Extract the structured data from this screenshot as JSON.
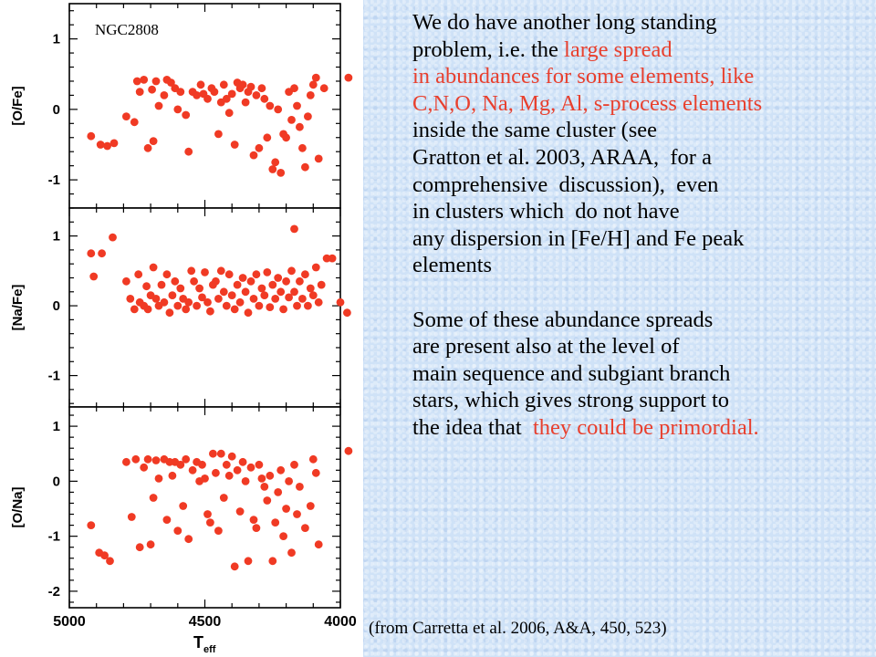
{
  "colors": {
    "marker": "#f03a24",
    "highlight": "#e8402e",
    "background": "#cfe2f7"
  },
  "text_block": {
    "lines": [
      [
        {
          "t": "We do have another long standing",
          "hl": false
        }
      ],
      [
        {
          "t": "problem, i.e. the ",
          "hl": false
        },
        {
          "t": "large spread",
          "hl": true
        }
      ],
      [
        {
          "t": "in abundances for some elements, like",
          "hl": true
        }
      ],
      [
        {
          "t": "C,N,O, Na, Mg, Al, s-process elements",
          "hl": true
        }
      ],
      [
        {
          "t": "inside the same cluster (see",
          "hl": false
        }
      ],
      [
        {
          "t": "Gratton et al. 2003, ARAA,  for a",
          "hl": false
        }
      ],
      [
        {
          "t": "comprehensive  discussion),  even",
          "hl": false
        }
      ],
      [
        {
          "t": "in clusters which  do not have",
          "hl": false
        }
      ],
      [
        {
          "t": "any dispersion in [Fe/H] and Fe peak",
          "hl": false
        }
      ],
      [
        {
          "t": "elements",
          "hl": false
        }
      ],
      [
        {
          "t": "",
          "hl": false
        }
      ],
      [
        {
          "t": "Some of these abundance spreads",
          "hl": false
        }
      ],
      [
        {
          "t": "are present also at the level of",
          "hl": false
        }
      ],
      [
        {
          "t": "main sequence and subgiant branch",
          "hl": false
        }
      ],
      [
        {
          "t": "stars, which gives strong support to",
          "hl": false
        }
      ],
      [
        {
          "t": "the idea that  ",
          "hl": false
        },
        {
          "t": "they could be primordial.",
          "hl": true
        }
      ]
    ]
  },
  "citation": "(from Carretta et al. 2006, A&A, 450, 523)",
  "chart_data": [
    {
      "type": "scatter",
      "annotation": "NGC2808",
      "xlabel": "",
      "ylabel": "[O/Fe]",
      "xlim": [
        5000,
        4000
      ],
      "ylim": [
        -1.4,
        1.5
      ],
      "yticks": [
        1,
        0,
        -1
      ],
      "points": [
        [
          4920,
          -0.38
        ],
        [
          4885,
          -0.5
        ],
        [
          4860,
          -0.52
        ],
        [
          4835,
          -0.48
        ],
        [
          4790,
          -0.1
        ],
        [
          4760,
          -0.18
        ],
        [
          4750,
          0.4
        ],
        [
          4740,
          0.25
        ],
        [
          4725,
          0.42
        ],
        [
          4710,
          -0.55
        ],
        [
          4695,
          0.28
        ],
        [
          4690,
          -0.45
        ],
        [
          4680,
          0.4
        ],
        [
          4670,
          0.05
        ],
        [
          4650,
          0.2
        ],
        [
          4640,
          0.42
        ],
        [
          4625,
          0.38
        ],
        [
          4610,
          0.3
        ],
        [
          4600,
          0.0
        ],
        [
          4590,
          0.25
        ],
        [
          4570,
          -0.08
        ],
        [
          4560,
          -0.6
        ],
        [
          4545,
          0.25
        ],
        [
          4530,
          0.2
        ],
        [
          4515,
          0.35
        ],
        [
          4505,
          0.22
        ],
        [
          4490,
          0.15
        ],
        [
          4475,
          0.3
        ],
        [
          4465,
          0.25
        ],
        [
          4450,
          -0.35
        ],
        [
          4440,
          0.1
        ],
        [
          4430,
          0.35
        ],
        [
          4420,
          0.15
        ],
        [
          4410,
          -0.05
        ],
        [
          4400,
          0.22
        ],
        [
          4390,
          -0.5
        ],
        [
          4380,
          0.38
        ],
        [
          4370,
          0.3
        ],
        [
          4360,
          0.35
        ],
        [
          4350,
          0.1
        ],
        [
          4340,
          0.25
        ],
        [
          4330,
          0.32
        ],
        [
          4320,
          -0.65
        ],
        [
          4310,
          0.2
        ],
        [
          4300,
          -0.55
        ],
        [
          4290,
          0.3
        ],
        [
          4280,
          0.15
        ],
        [
          4270,
          -0.4
        ],
        [
          4260,
          0.05
        ],
        [
          4250,
          -0.85
        ],
        [
          4240,
          -0.75
        ],
        [
          4230,
          0.0
        ],
        [
          4220,
          -0.9
        ],
        [
          4210,
          -0.35
        ],
        [
          4200,
          -0.4
        ],
        [
          4190,
          0.25
        ],
        [
          4180,
          -0.15
        ],
        [
          4170,
          0.3
        ],
        [
          4160,
          0.05
        ],
        [
          4150,
          -0.25
        ],
        [
          4140,
          -0.55
        ],
        [
          4130,
          -0.82
        ],
        [
          4120,
          -0.1
        ],
        [
          4110,
          0.2
        ],
        [
          4100,
          0.35
        ],
        [
          4090,
          0.45
        ],
        [
          4080,
          -0.7
        ],
        [
          4060,
          0.3
        ],
        [
          3970,
          0.45
        ]
      ]
    },
    {
      "type": "scatter",
      "xlabel": "",
      "ylabel": "[Na/Fe]",
      "xlim": [
        5000,
        4000
      ],
      "ylim": [
        -1.45,
        1.4
      ],
      "yticks": [
        1,
        0,
        -1
      ],
      "points": [
        [
          4920,
          0.75
        ],
        [
          4910,
          0.42
        ],
        [
          4880,
          0.75
        ],
        [
          4840,
          0.98
        ],
        [
          4790,
          0.35
        ],
        [
          4775,
          0.1
        ],
        [
          4760,
          -0.05
        ],
        [
          4745,
          0.45
        ],
        [
          4740,
          0.05
        ],
        [
          4725,
          0.0
        ],
        [
          4715,
          0.28
        ],
        [
          4710,
          -0.05
        ],
        [
          4700,
          0.15
        ],
        [
          4690,
          0.55
        ],
        [
          4680,
          0.1
        ],
        [
          4670,
          0.0
        ],
        [
          4660,
          0.3
        ],
        [
          4650,
          0.05
        ],
        [
          4640,
          0.45
        ],
        [
          4630,
          -0.1
        ],
        [
          4620,
          0.15
        ],
        [
          4610,
          0.35
        ],
        [
          4600,
          0.0
        ],
        [
          4590,
          0.25
        ],
        [
          4580,
          0.1
        ],
        [
          4570,
          -0.05
        ],
        [
          4560,
          0.05
        ],
        [
          4550,
          0.5
        ],
        [
          4540,
          0.35
        ],
        [
          4530,
          0.0
        ],
        [
          4520,
          0.25
        ],
        [
          4510,
          0.12
        ],
        [
          4500,
          0.48
        ],
        [
          4490,
          0.05
        ],
        [
          4480,
          -0.08
        ],
        [
          4470,
          0.3
        ],
        [
          4460,
          0.35
        ],
        [
          4450,
          0.1
        ],
        [
          4440,
          0.5
        ],
        [
          4430,
          0.2
        ],
        [
          4420,
          0.0
        ],
        [
          4410,
          0.45
        ],
        [
          4400,
          0.15
        ],
        [
          4390,
          -0.05
        ],
        [
          4380,
          0.3
        ],
        [
          4370,
          0.05
        ],
        [
          4360,
          0.4
        ],
        [
          4350,
          0.2
        ],
        [
          4340,
          -0.1
        ],
        [
          4330,
          0.35
        ],
        [
          4320,
          0.1
        ],
        [
          4310,
          0.45
        ],
        [
          4300,
          0.0
        ],
        [
          4290,
          0.25
        ],
        [
          4280,
          0.15
        ],
        [
          4270,
          0.48
        ],
        [
          4260,
          -0.02
        ],
        [
          4250,
          0.3
        ],
        [
          4240,
          0.1
        ],
        [
          4230,
          0.4
        ],
        [
          4220,
          0.2
        ],
        [
          4210,
          -0.05
        ],
        [
          4200,
          0.35
        ],
        [
          4190,
          0.12
        ],
        [
          4180,
          0.5
        ],
        [
          4170,
          0.2
        ],
        [
          4160,
          0.0
        ],
        [
          4150,
          0.35
        ],
        [
          4140,
          0.1
        ],
        [
          4130,
          0.45
        ],
        [
          4120,
          0.0
        ],
        [
          4110,
          0.25
        ],
        [
          4100,
          0.15
        ],
        [
          4090,
          0.55
        ],
        [
          4080,
          0.05
        ],
        [
          4070,
          0.3
        ],
        [
          4050,
          0.68
        ],
        [
          4030,
          0.68
        ],
        [
          4000,
          0.05
        ],
        [
          3975,
          -0.1
        ],
        [
          4170,
          1.1
        ]
      ]
    },
    {
      "type": "scatter",
      "xlabel": "T_eff",
      "ylabel": "[O/Na]",
      "xlim": [
        5000,
        4000
      ],
      "ylim": [
        -2.3,
        1.35
      ],
      "yticks": [
        1,
        0,
        -1,
        -2
      ],
      "points": [
        [
          4920,
          -0.8
        ],
        [
          4890,
          -1.3
        ],
        [
          4870,
          -1.35
        ],
        [
          4850,
          -1.45
        ],
        [
          4790,
          0.35
        ],
        [
          4770,
          -0.65
        ],
        [
          4755,
          0.4
        ],
        [
          4740,
          -1.2
        ],
        [
          4725,
          0.25
        ],
        [
          4710,
          0.4
        ],
        [
          4700,
          -1.15
        ],
        [
          4690,
          -0.3
        ],
        [
          4680,
          0.38
        ],
        [
          4670,
          0.05
        ],
        [
          4650,
          0.4
        ],
        [
          4640,
          -0.7
        ],
        [
          4630,
          0.35
        ],
        [
          4620,
          0.1
        ],
        [
          4610,
          0.35
        ],
        [
          4600,
          -0.9
        ],
        [
          4590,
          0.3
        ],
        [
          4580,
          -0.45
        ],
        [
          4570,
          0.4
        ],
        [
          4560,
          -1.05
        ],
        [
          4545,
          0.2
        ],
        [
          4530,
          0.35
        ],
        [
          4520,
          0.0
        ],
        [
          4510,
          0.3
        ],
        [
          4500,
          0.05
        ],
        [
          4490,
          -0.6
        ],
        [
          4480,
          -0.75
        ],
        [
          4470,
          0.5
        ],
        [
          4460,
          0.15
        ],
        [
          4450,
          -0.9
        ],
        [
          4440,
          0.5
        ],
        [
          4430,
          -0.3
        ],
        [
          4420,
          0.3
        ],
        [
          4410,
          0.1
        ],
        [
          4400,
          0.45
        ],
        [
          4390,
          -1.55
        ],
        [
          4380,
          0.2
        ],
        [
          4370,
          -0.55
        ],
        [
          4360,
          0.35
        ],
        [
          4350,
          0.0
        ],
        [
          4340,
          -1.45
        ],
        [
          4330,
          0.25
        ],
        [
          4320,
          -0.7
        ],
        [
          4310,
          -0.85
        ],
        [
          4300,
          0.3
        ],
        [
          4290,
          0.05
        ],
        [
          4280,
          -0.1
        ],
        [
          4270,
          -0.35
        ],
        [
          4260,
          0.1
        ],
        [
          4250,
          -1.45
        ],
        [
          4240,
          -0.75
        ],
        [
          4230,
          -0.2
        ],
        [
          4220,
          0.2
        ],
        [
          4210,
          -1.0
        ],
        [
          4200,
          -0.5
        ],
        [
          4190,
          0.0
        ],
        [
          4180,
          -1.3
        ],
        [
          4170,
          0.3
        ],
        [
          4160,
          -0.6
        ],
        [
          4150,
          -0.1
        ],
        [
          4130,
          -0.85
        ],
        [
          4110,
          -0.45
        ],
        [
          4100,
          0.4
        ],
        [
          4090,
          0.15
        ],
        [
          4080,
          -1.15
        ],
        [
          3970,
          0.55
        ]
      ]
    }
  ],
  "x_axis": {
    "ticks": [
      5000,
      4500,
      4000
    ],
    "label": "T",
    "label_sub": "eff"
  }
}
